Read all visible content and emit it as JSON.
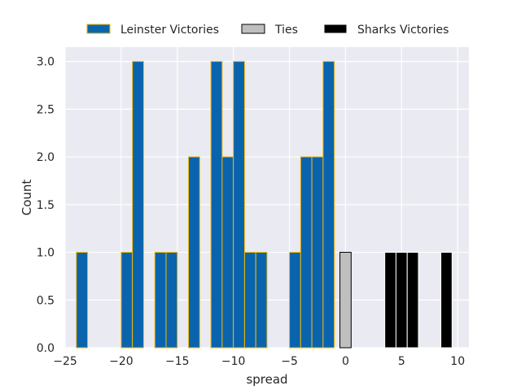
{
  "chart_data": {
    "type": "bar",
    "xlabel": "spread",
    "ylabel": "Count",
    "xlim": [
      -25,
      11
    ],
    "ylim": [
      0,
      3.15
    ],
    "xticks": [
      -25,
      -20,
      -15,
      -10,
      -5,
      0,
      5,
      10
    ],
    "xtick_labels": [
      "−25",
      "−20",
      "−15",
      "−10",
      "−5",
      "0",
      "5",
      "10"
    ],
    "yticks": [
      0,
      0.5,
      1,
      1.5,
      2,
      2.5,
      3
    ],
    "ytick_labels": [
      "0.0",
      "0.5",
      "1.0",
      "1.5",
      "2.0",
      "2.5",
      "3.0"
    ],
    "grid": true,
    "legend_position": "top-center, above plot",
    "bin_width": 1,
    "series": [
      {
        "name": "Leinster Victories",
        "color": "#0a64ad",
        "edgecolor": "#f2b705",
        "bins": [
          {
            "x": -24,
            "count": 1
          },
          {
            "x": -20,
            "count": 1
          },
          {
            "x": -19,
            "count": 3
          },
          {
            "x": -17,
            "count": 1
          },
          {
            "x": -16,
            "count": 1
          },
          {
            "x": -14,
            "count": 2
          },
          {
            "x": -12,
            "count": 3
          },
          {
            "x": -11,
            "count": 2
          },
          {
            "x": -10,
            "count": 3
          },
          {
            "x": -9,
            "count": 1
          },
          {
            "x": -8,
            "count": 1
          },
          {
            "x": -5,
            "count": 1
          },
          {
            "x": -4,
            "count": 2
          },
          {
            "x": -3,
            "count": 2
          },
          {
            "x": -2,
            "count": 3
          }
        ]
      },
      {
        "name": "Ties",
        "color": "#bfbfbf",
        "edgecolor": "#000000",
        "bins": [
          {
            "x": -0.5,
            "count": 1
          }
        ]
      },
      {
        "name": "Sharks Victories",
        "color": "#000000",
        "edgecolor": "#ffffff",
        "bins": [
          {
            "x": 3.5,
            "count": 1
          },
          {
            "x": 4.5,
            "count": 1
          },
          {
            "x": 5.5,
            "count": 1
          },
          {
            "x": 8.5,
            "count": 1
          }
        ]
      }
    ]
  }
}
